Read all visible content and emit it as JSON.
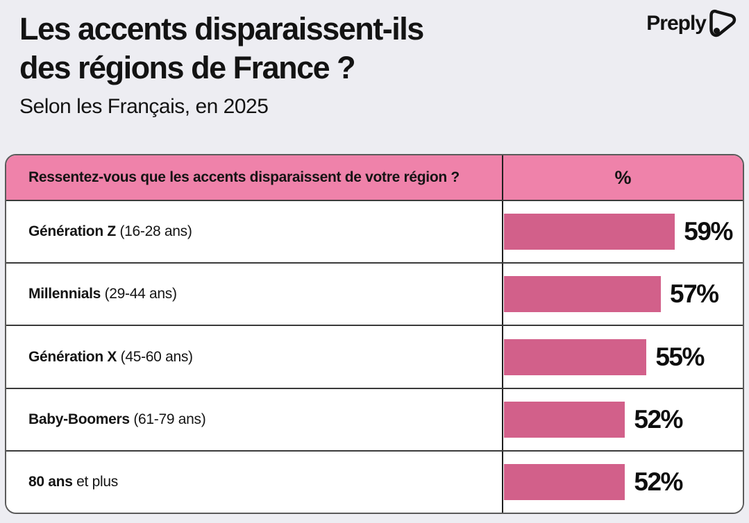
{
  "page": {
    "background": "#ededf2"
  },
  "header": {
    "title_line1": "Les accents disparaissent-ils",
    "title_line2": "des régions de France ?",
    "subtitle": "Selon les Français, en 2025",
    "brand": "Preply",
    "brand_logo_icon": "preply-play-bubble-icon"
  },
  "colors": {
    "header_pink": "#ef82aa",
    "bar_pink": "#d2608a",
    "text_black": "#141414",
    "table_border": "#3a3a3a"
  },
  "table": {
    "question_header": "Ressentez-vous que les accents disparaissent de votre région ?",
    "value_header": "%",
    "rows": [
      {
        "label_bold": "Génération Z",
        "label_rest": " (16-28 ans)",
        "value": 59,
        "value_label": "59%"
      },
      {
        "label_bold": "Millennials",
        "label_rest": " (29-44 ans)",
        "value": 57,
        "value_label": "57%"
      },
      {
        "label_bold": "Génération X",
        "label_rest": " (45-60 ans)",
        "value": 55,
        "value_label": "55%"
      },
      {
        "label_bold": "Baby-Boomers",
        "label_rest": " (61-79 ans)",
        "value": 52,
        "value_label": "52%"
      },
      {
        "label_bold": "80 ans",
        "label_rest": " et plus",
        "value": 52,
        "value_label": "52%"
      }
    ]
  },
  "chart_data": {
    "type": "bar",
    "orientation": "horizontal",
    "title": "Les accents disparaissent-ils des régions de France ?",
    "subtitle": "Selon les Français, en 2025",
    "question": "Ressentez-vous que les accents disparaissent de votre région ?",
    "unit": "%",
    "categories": [
      "Génération Z (16-28 ans)",
      "Millennials (29-44 ans)",
      "Génération X (45-60 ans)",
      "Baby-Boomers (61-79 ans)",
      "80 ans et plus"
    ],
    "values": [
      59,
      57,
      55,
      52,
      52
    ],
    "data_labels": [
      "59%",
      "57%",
      "55%",
      "52%",
      "52%"
    ],
    "bar_color": "#d2608a",
    "grid": false,
    "legend": false,
    "bar_scale_hint": {
      "value_at_zero_width": 35,
      "value_at_full_width": 68.5
    }
  }
}
